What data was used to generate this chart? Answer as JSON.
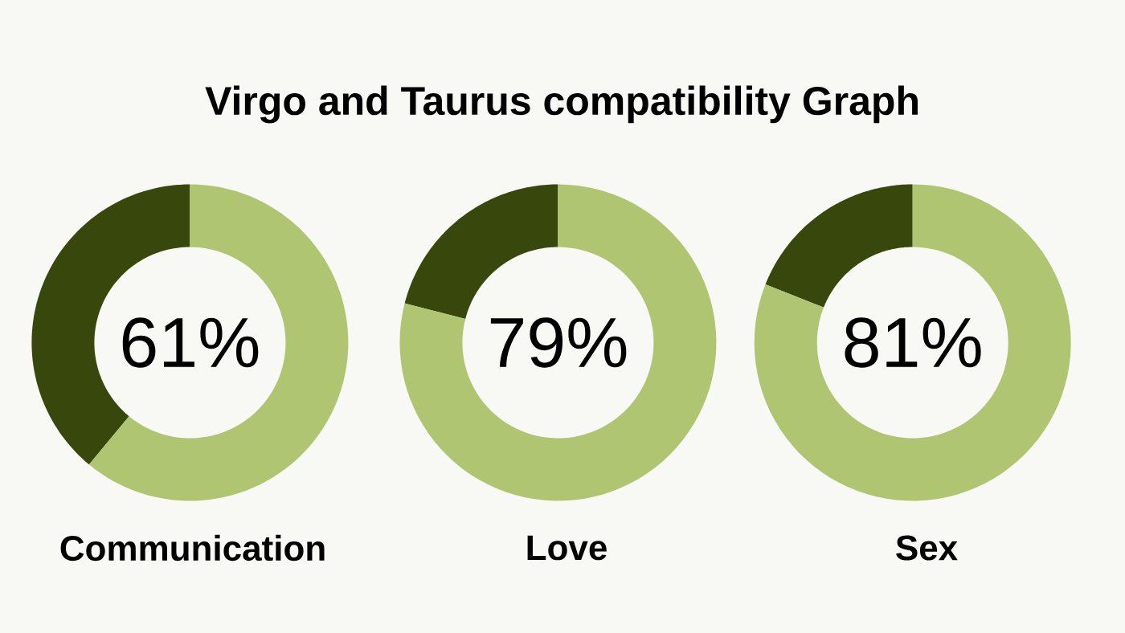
{
  "chart_data": [
    {
      "type": "donut",
      "title": "Virgo and Taurus compatibility Graph",
      "xlabel": "Communication",
      "categories": [
        null,
        null
      ],
      "values": [
        61,
        39
      ],
      "colors": [
        "#afc572",
        "#38470b"
      ],
      "value_labels": [
        "61%",
        null
      ]
    },
    {
      "type": "donut",
      "xlabel": "Love",
      "categories": [
        null,
        null
      ],
      "values": [
        79,
        21
      ],
      "colors": [
        "#afc572",
        "#38470b"
      ],
      "value_labels": [
        "79%",
        null
      ]
    },
    {
      "type": "donut",
      "xlabel": "Sex",
      "categories": [
        null,
        null
      ],
      "values": [
        81,
        19
      ],
      "colors": [
        "#afc572",
        "#38470b"
      ],
      "value_labels": [
        "81%",
        null
      ]
    }
  ]
}
